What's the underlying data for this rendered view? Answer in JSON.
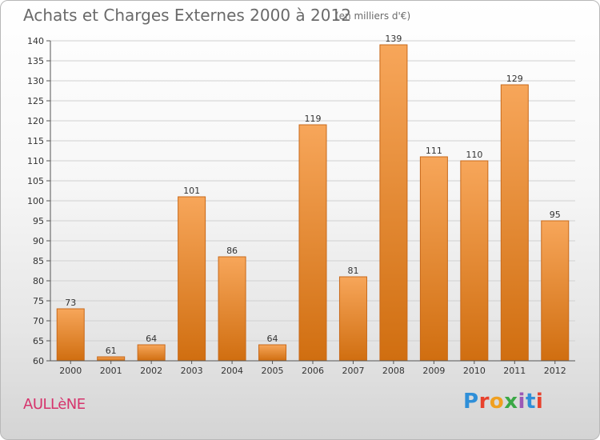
{
  "header": {
    "title": "Achats et Charges Externes 2000 à 2012",
    "unit": "(en milliers d'€)"
  },
  "footer": {
    "commune": "AULLèNE",
    "logo_text": "Proxiti",
    "logo_colors": [
      "#2f8fd8",
      "#e8412c",
      "#f0a020",
      "#3aa845",
      "#9b59b6",
      "#2f8fd8",
      "#e8412c"
    ]
  },
  "colors": {
    "bar_top": "#f7a65a",
    "bar_bottom": "#d06e10",
    "bar_stroke": "#c8691a"
  },
  "chart_data": {
    "type": "bar",
    "title": "Achats et Charges Externes 2000 à 2012",
    "subtitle": "(en milliers d'€)",
    "categories": [
      "2000",
      "2001",
      "2002",
      "2003",
      "2004",
      "2005",
      "2006",
      "2007",
      "2008",
      "2009",
      "2010",
      "2011",
      "2012"
    ],
    "values": [
      73,
      61,
      64,
      101,
      86,
      64,
      119,
      81,
      139,
      111,
      110,
      129,
      95
    ],
    "ylim": [
      60,
      140
    ],
    "yticks": [
      60,
      65,
      70,
      75,
      80,
      85,
      90,
      95,
      100,
      105,
      110,
      115,
      120,
      125,
      130,
      135,
      140
    ],
    "grid": true,
    "legend": "none"
  }
}
